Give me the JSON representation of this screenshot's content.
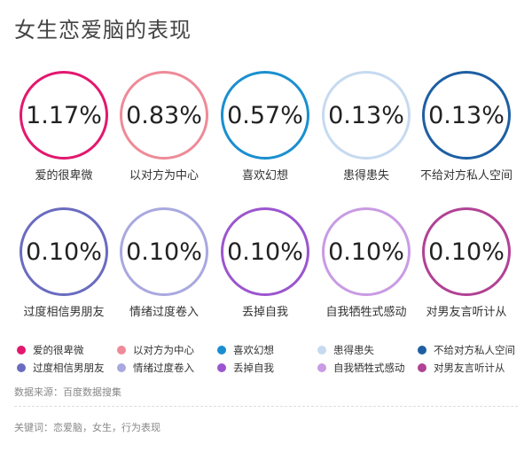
{
  "page_title": "女生恋爱脑的表现",
  "source_text": "数据来源：百度数据搜集",
  "keywords_text": "关键词：恋爱脑，女生，行为表现",
  "chart_data": {
    "type": "ring-stat",
    "title": "女生恋爱脑的表现",
    "items": [
      {
        "label": "爱的很卑微",
        "display": "1.17%",
        "value": 1.17,
        "color": "#e2186e"
      },
      {
        "label": "以对方为中心",
        "display": "0.83%",
        "value": 0.83,
        "color": "#ef8a98"
      },
      {
        "label": "喜欢幻想",
        "display": "0.57%",
        "value": 0.57,
        "color": "#1a8fd0"
      },
      {
        "label": "患得患失",
        "display": "0.13%",
        "value": 0.13,
        "color": "#c6daf0"
      },
      {
        "label": "不给对方私人空间",
        "display": "0.13%",
        "value": 0.13,
        "color": "#1e5fa3"
      },
      {
        "label": "过度相信男朋友",
        "display": "0.10%",
        "value": 0.1,
        "color": "#6a6cc0"
      },
      {
        "label": "情绪过度卷入",
        "display": "0.10%",
        "value": 0.1,
        "color": "#a9a8df"
      },
      {
        "label": "丢掉自我",
        "display": "0.10%",
        "value": 0.1,
        "color": "#9b56cf"
      },
      {
        "label": "自我牺牲式感动",
        "display": "0.10%",
        "value": 0.1,
        "color": "#c99be4"
      },
      {
        "label": "对男友言听计从",
        "display": "0.10%",
        "value": 0.1,
        "color": "#b14294"
      }
    ],
    "legend_position": "bottom"
  }
}
